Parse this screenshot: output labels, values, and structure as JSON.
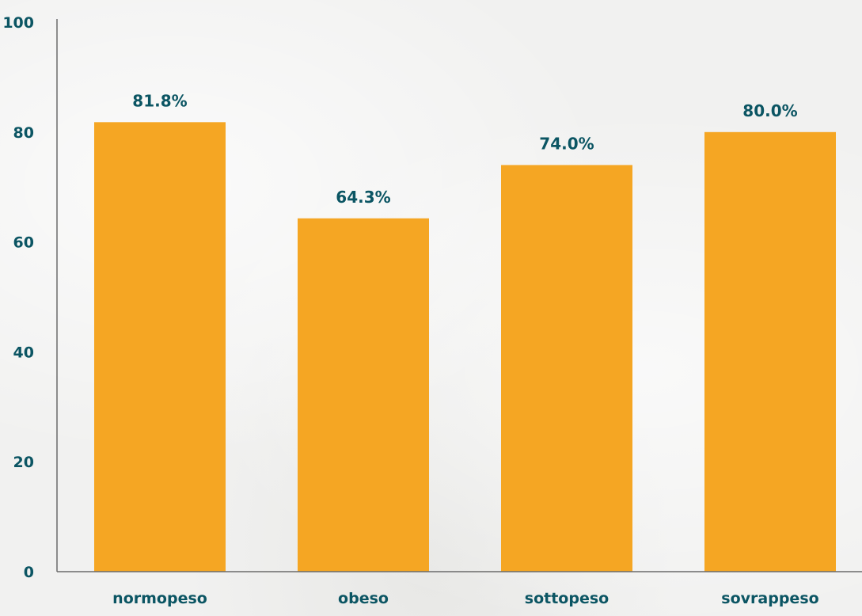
{
  "chart_data": {
    "type": "bar",
    "categories": [
      "normopeso",
      "obeso",
      "sottopeso",
      "sovrappeso"
    ],
    "values": [
      81.8,
      64.3,
      74.0,
      80.0
    ],
    "value_labels": [
      "81.8%",
      "64.3%",
      "74.0%",
      "80.0%"
    ],
    "title": "",
    "xlabel": "",
    "ylabel": "",
    "ylim": [
      0,
      100
    ],
    "yticks": [
      0,
      20,
      40,
      60,
      80,
      100
    ],
    "grid": false,
    "bar_color": "#f5a623",
    "text_color": "#0b5563",
    "axis_color": "#6b6b6b"
  }
}
